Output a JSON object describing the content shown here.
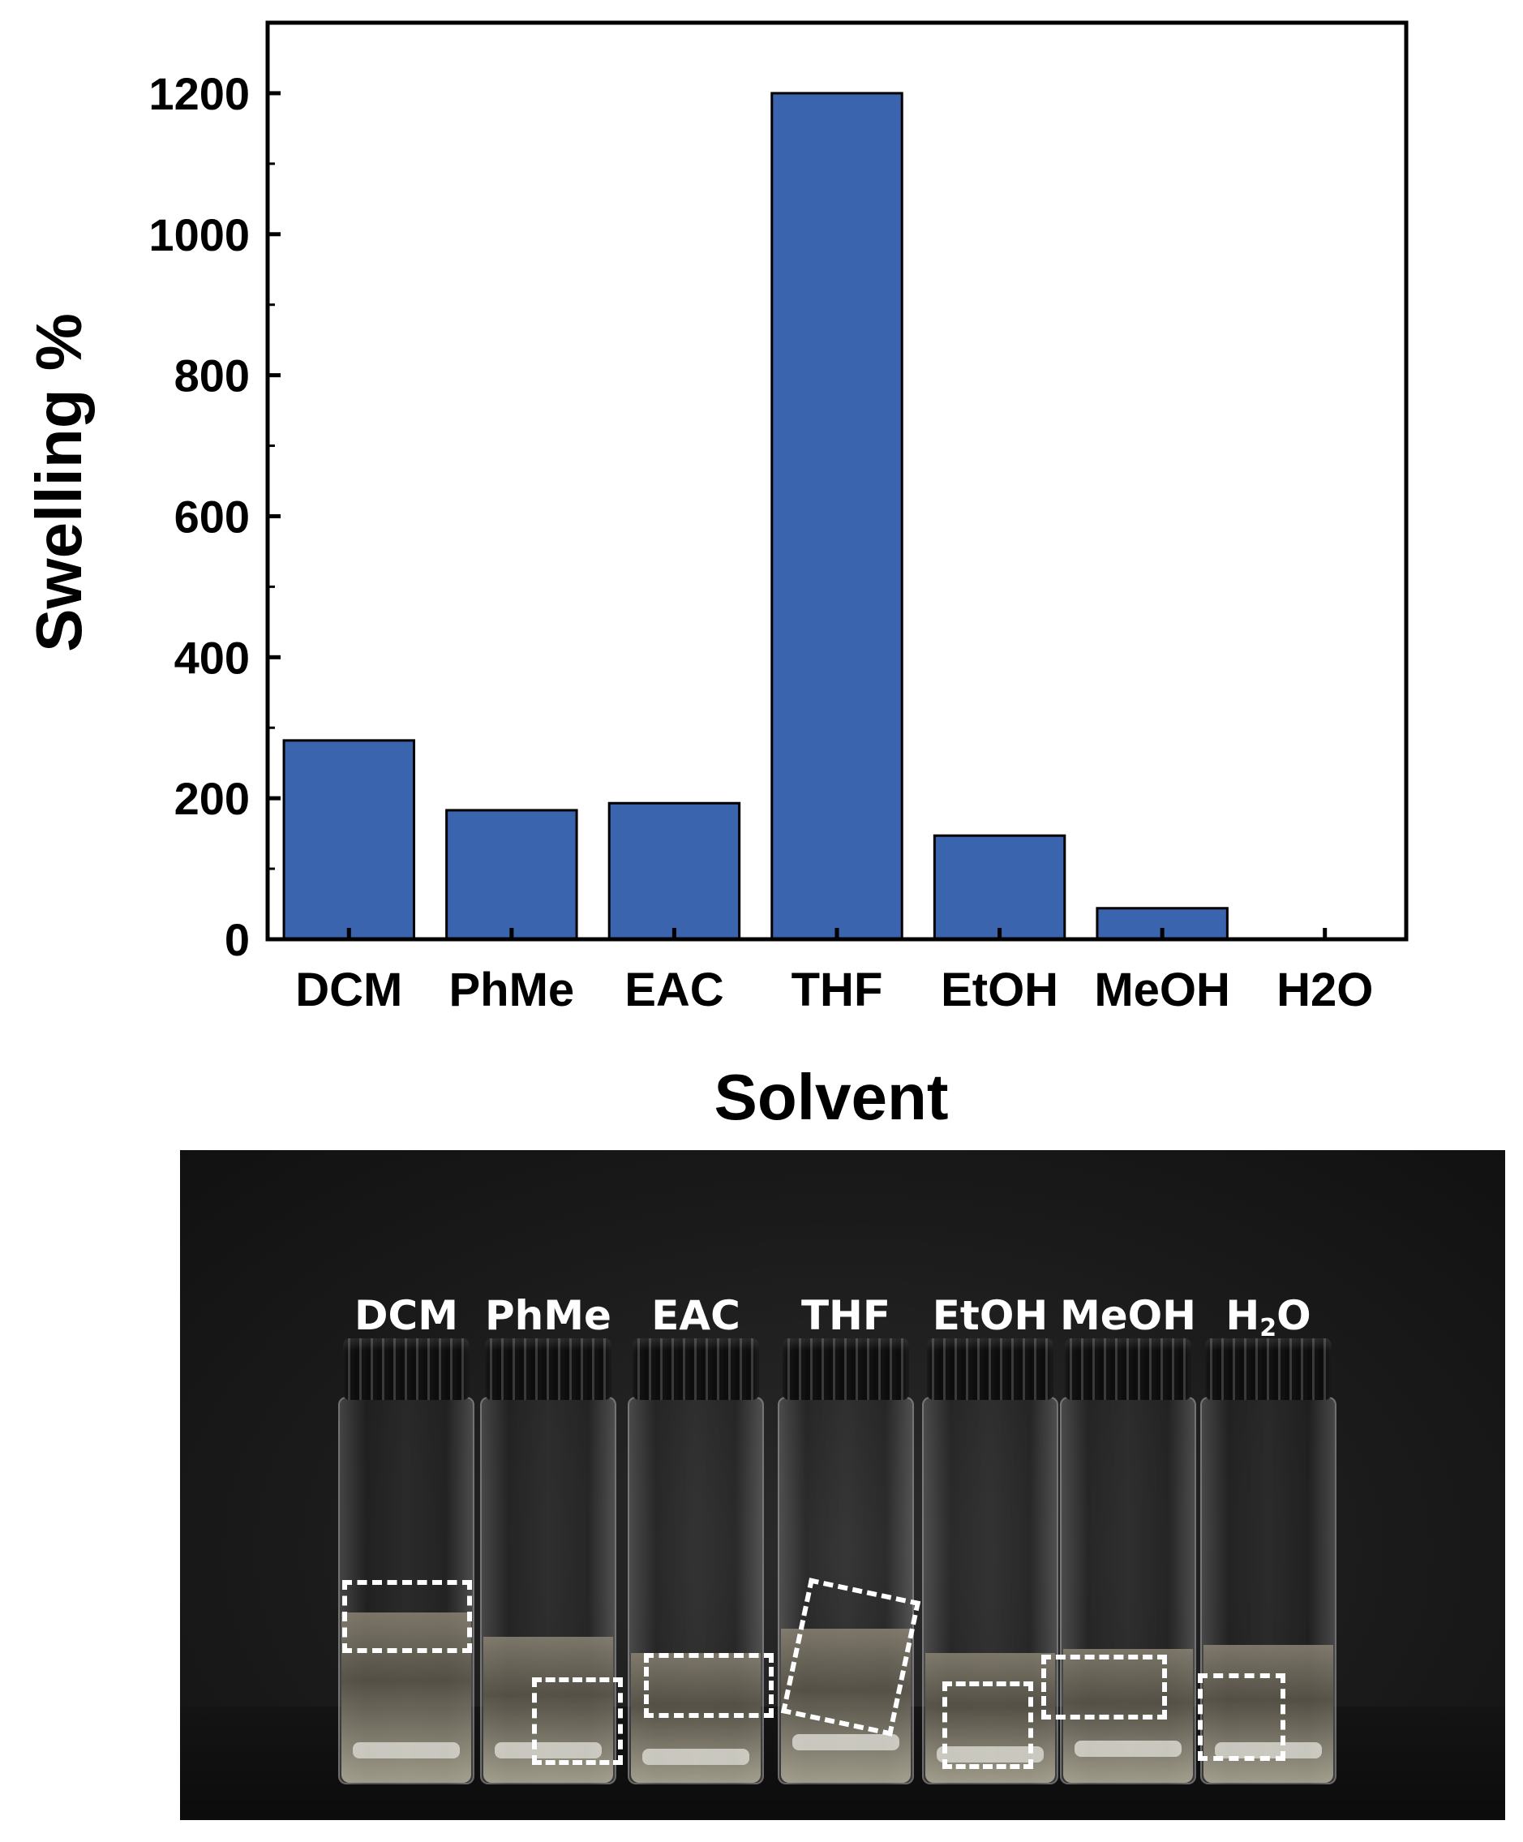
{
  "chart_data": {
    "type": "bar",
    "categories": [
      "DCM",
      "PhMe",
      "EAC",
      "THF",
      "EtOH",
      "MeOH",
      "H2O"
    ],
    "values": [
      282,
      183,
      193,
      1200,
      147,
      44,
      0
    ],
    "xlabel": "Solvent",
    "ylabel": "Swelling %",
    "ylim": [
      0,
      1300
    ],
    "yticks": [
      0,
      200,
      400,
      600,
      800,
      1000,
      1200
    ],
    "bar_color": "#3a64ad",
    "grid": false,
    "legend": "none"
  },
  "photo": {
    "labels": [
      {
        "text": "DCM"
      },
      {
        "text": "PhMe"
      },
      {
        "text": "EAC"
      },
      {
        "text": "THF"
      },
      {
        "text": "EtOH"
      },
      {
        "text": "MeOH"
      },
      {
        "base": "H",
        "sub": "2",
        "tail": "O"
      }
    ]
  }
}
